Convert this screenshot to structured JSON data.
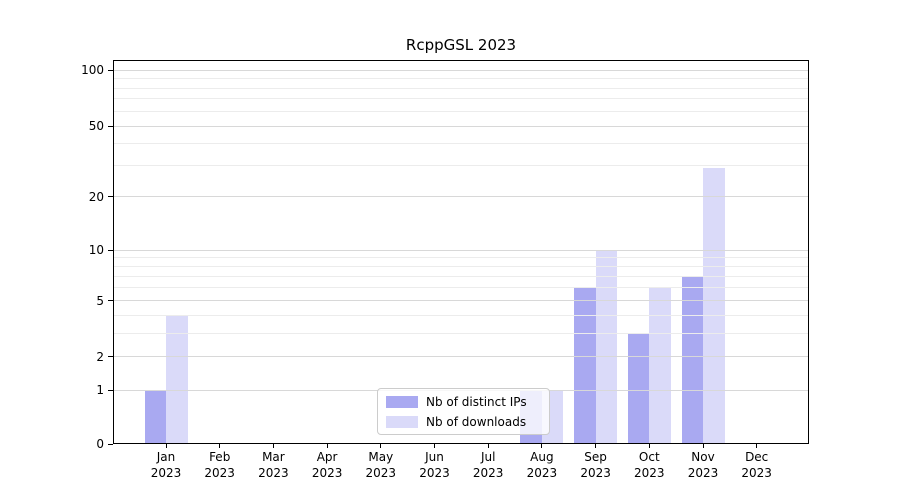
{
  "title": "RcppGSL 2023",
  "legend": {
    "items": [
      {
        "label": "Nb of distinct IPs",
        "color": "#a9a9f1"
      },
      {
        "label": "Nb of downloads",
        "color": "#dadaf9"
      }
    ]
  },
  "chart_data": {
    "type": "bar",
    "title": "RcppGSL 2023",
    "year_label": "2023",
    "categories": [
      "Jan",
      "Feb",
      "Mar",
      "Apr",
      "May",
      "Jun",
      "Jul",
      "Aug",
      "Sep",
      "Oct",
      "Nov",
      "Dec"
    ],
    "series": [
      {
        "name": "Nb of distinct IPs",
        "color": "#a9a9f1",
        "values": [
          1,
          0,
          0,
          0,
          0,
          0,
          0,
          1,
          6,
          3,
          7,
          0
        ]
      },
      {
        "name": "Nb of downloads",
        "color": "#dadaf9",
        "values": [
          4,
          0,
          0,
          0,
          0,
          0,
          0,
          1,
          10,
          6,
          29,
          0
        ]
      }
    ],
    "yscale": "log1p",
    "ylim": [
      0,
      115
    ],
    "y_major_ticks": [
      0,
      1,
      2,
      5,
      10,
      20,
      50,
      100
    ],
    "y_minor_ticks": [
      3,
      4,
      6,
      7,
      8,
      9,
      30,
      40,
      60,
      70,
      80,
      90
    ],
    "grid": "horizontal-major-and-minor",
    "legend_position": "inside-bottom-center",
    "axis_color": "#000000",
    "major_grid_color": "#d8d8d8",
    "minor_grid_color": "#ececec"
  }
}
